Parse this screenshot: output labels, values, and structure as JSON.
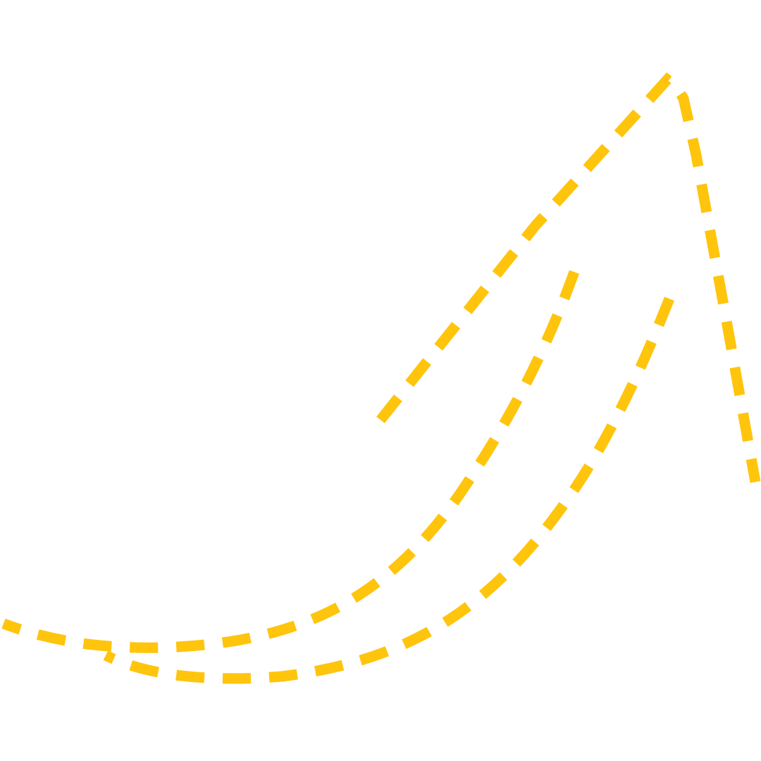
{
  "canvas": {
    "background": "#ffffff",
    "stroke_color": "#FFC40C",
    "line_style": "dashed",
    "curves": [
      "upper-peak-curve",
      "middle-curve",
      "lower-curve"
    ]
  }
}
